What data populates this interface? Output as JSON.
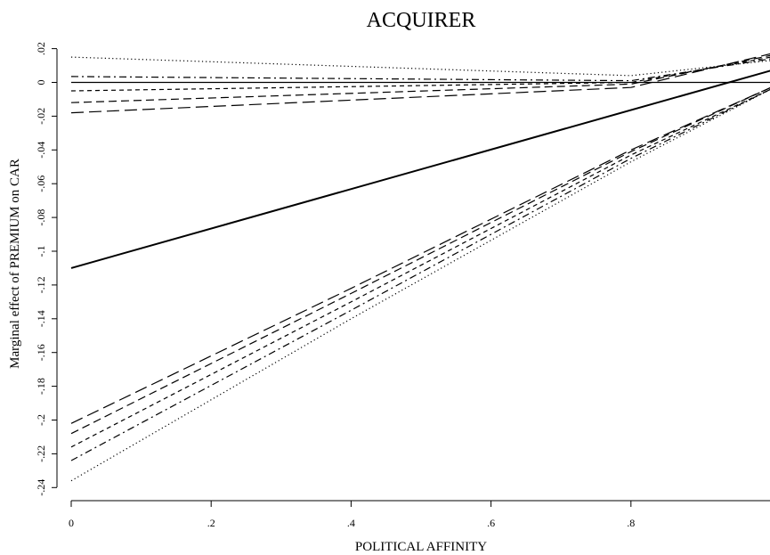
{
  "chart_data": {
    "type": "line",
    "title": "ACQUIRER",
    "xlabel": "POLITICAL AFFINITY",
    "ylabel": "Marginal effect of PREMIUM on CAR",
    "x_ticks": [
      0,
      0.2,
      0.4,
      0.6,
      0.8
    ],
    "x_tick_labels": [
      "0",
      ".2",
      ".4",
      ".6",
      ".8"
    ],
    "y_ticks": [
      0.02,
      0,
      -0.02,
      -0.04,
      -0.06,
      -0.08,
      -0.1,
      -0.12,
      -0.14,
      -0.16,
      -0.18,
      -0.2,
      -0.22,
      -0.24
    ],
    "y_tick_labels": [
      ".02",
      "0",
      "-.02",
      "-.04",
      "-.06",
      "-.08",
      "-.1",
      "-.12",
      "-.14",
      "-.16",
      "-.18",
      "-.2",
      "-.22",
      "-.24"
    ],
    "xlim": [
      0,
      1
    ],
    "ylim": [
      -0.24,
      0.02
    ],
    "grid": false,
    "reference_line": {
      "y": 0
    },
    "series": [
      {
        "style": "solid",
        "x": [
          0,
          1
        ],
        "y": [
          -0.11,
          0.007
        ]
      },
      {
        "style": "long-dash",
        "x": [
          0,
          0.8,
          1
        ],
        "y": [
          -0.018,
          -0.003,
          0.017
        ]
      },
      {
        "style": "dash",
        "x": [
          0,
          0.8,
          1
        ],
        "y": [
          -0.012,
          -0.001,
          0.016
        ]
      },
      {
        "style": "short-dash",
        "x": [
          0,
          0.8,
          1
        ],
        "y": [
          -0.005,
          0.0,
          0.015
        ]
      },
      {
        "style": "dash-dot",
        "x": [
          0,
          0.8,
          1
        ],
        "y": [
          0.0035,
          0.001,
          0.014
        ]
      },
      {
        "style": "dot",
        "x": [
          0,
          0.8,
          1
        ],
        "y": [
          0.015,
          0.004,
          0.013
        ]
      },
      {
        "style": "long-dash",
        "x": [
          0,
          0.4,
          0.8,
          1
        ],
        "y": [
          -0.202,
          -0.122,
          -0.04,
          -0.003
        ]
      },
      {
        "style": "dash",
        "x": [
          0,
          0.4,
          0.8,
          1
        ],
        "y": [
          -0.208,
          -0.125,
          -0.041,
          -0.003
        ]
      },
      {
        "style": "short-dash",
        "x": [
          0,
          0.4,
          0.8,
          1
        ],
        "y": [
          -0.216,
          -0.13,
          -0.043,
          -0.004
        ]
      },
      {
        "style": "dash-dot",
        "x": [
          0,
          0.4,
          0.8,
          1
        ],
        "y": [
          -0.224,
          -0.135,
          -0.045,
          -0.004
        ]
      },
      {
        "style": "dot",
        "x": [
          0,
          0.4,
          0.8,
          1
        ],
        "y": [
          -0.236,
          -0.14,
          -0.047,
          -0.004
        ]
      }
    ]
  }
}
